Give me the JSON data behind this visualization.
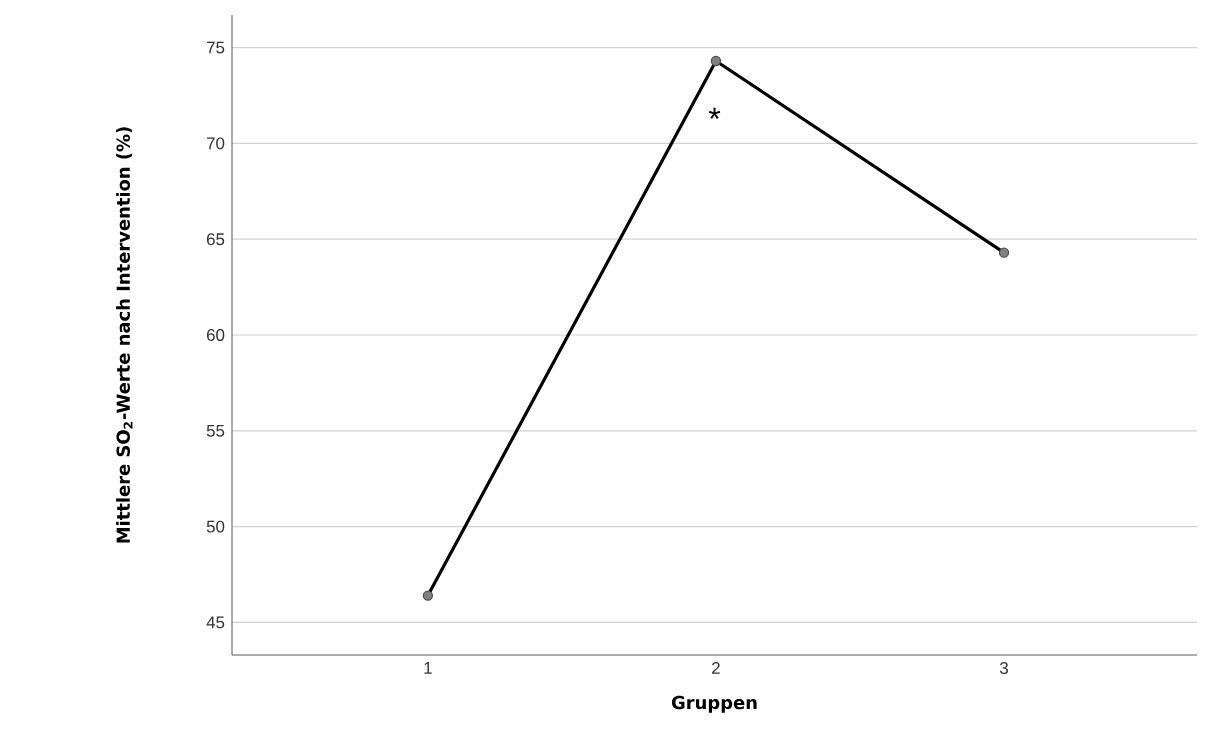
{
  "chart_data": {
    "type": "line",
    "xlabel": "Gruppen",
    "ylabel": "**Mittlere SO$_{2}$-Werte nach Intervention (%)**",
    "categories": [
      "1",
      "2",
      "3"
    ],
    "series": [
      {
        "color": "#000000",
        "values": [
          46.4,
          74.3,
          64.3
        ]
      }
    ],
    "ylim": [
      43.3,
      76.7
    ],
    "yticks": [
      45,
      50,
      55,
      60,
      65,
      70,
      75
    ],
    "grid": "y",
    "marker": "circle",
    "line_style": "solid",
    "annotations": [
      "*"
    ]
  }
}
